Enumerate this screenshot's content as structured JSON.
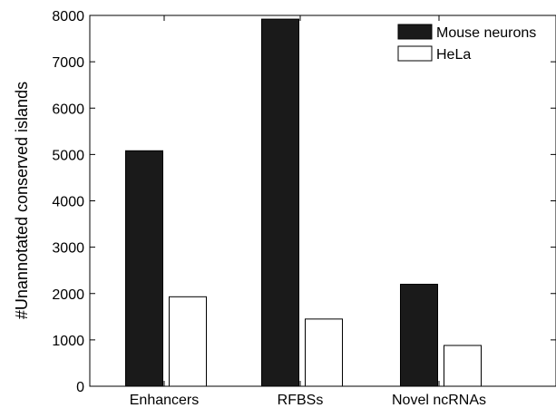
{
  "chart_data": {
    "type": "bar",
    "categories": [
      "Enhancers",
      "RFBSs",
      "Novel ncRNAs"
    ],
    "series": [
      {
        "name": "Mouse neurons",
        "values": [
          5080,
          7920,
          2200
        ],
        "color": "#1a1a1a"
      },
      {
        "name": "HeLa",
        "values": [
          1930,
          1450,
          880
        ],
        "color": "#ffffff"
      }
    ],
    "title": "",
    "xlabel": "",
    "ylabel": "#Unannotated conserved islands",
    "ylim": [
      0,
      8000
    ],
    "yticks": [
      0,
      1000,
      2000,
      3000,
      4000,
      5000,
      6000,
      7000,
      8000
    ],
    "grid": false,
    "legend_position": "top-right"
  }
}
